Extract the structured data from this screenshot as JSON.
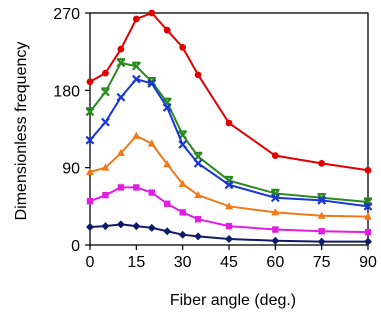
{
  "chart_data": {
    "type": "line",
    "xlabel": "Fiber angle (deg.)",
    "ylabel": "Dimensionless frequency",
    "xlim": [
      0,
      90
    ],
    "ylim": [
      0,
      270
    ],
    "xticks": [
      0,
      15,
      30,
      45,
      60,
      75,
      90
    ],
    "yticks": [
      0,
      90,
      180,
      270
    ],
    "grid": false,
    "legend": "none",
    "x": [
      0,
      5,
      10,
      15,
      20,
      25,
      30,
      35,
      45,
      60,
      75,
      90
    ],
    "series": [
      {
        "color": "#e00000",
        "marker": "circle",
        "values": [
          190,
          200,
          228,
          263,
          270,
          250,
          230,
          198,
          142,
          104,
          95,
          87
        ]
      },
      {
        "color": "#2a8a1e",
        "marker": "star",
        "values": [
          155,
          178,
          212,
          208,
          190,
          166,
          128,
          103,
          75,
          60,
          55,
          50
        ]
      },
      {
        "color": "#1a36d6",
        "marker": "x",
        "values": [
          122,
          143,
          172,
          193,
          188,
          160,
          117,
          95,
          70,
          55,
          52,
          45
        ]
      },
      {
        "color": "#f07a1a",
        "marker": "triangle",
        "values": [
          85,
          90,
          107,
          127,
          118,
          94,
          71,
          58,
          45,
          38,
          34,
          33
        ]
      },
      {
        "color": "#e020e0",
        "marker": "square",
        "values": [
          51,
          58,
          67,
          67,
          61,
          48,
          38,
          30,
          22,
          18,
          16,
          15
        ]
      },
      {
        "color": "#101a6a",
        "marker": "diamond",
        "values": [
          21,
          22,
          24,
          22,
          20,
          16,
          12,
          10,
          7,
          5,
          4,
          4
        ]
      }
    ]
  }
}
